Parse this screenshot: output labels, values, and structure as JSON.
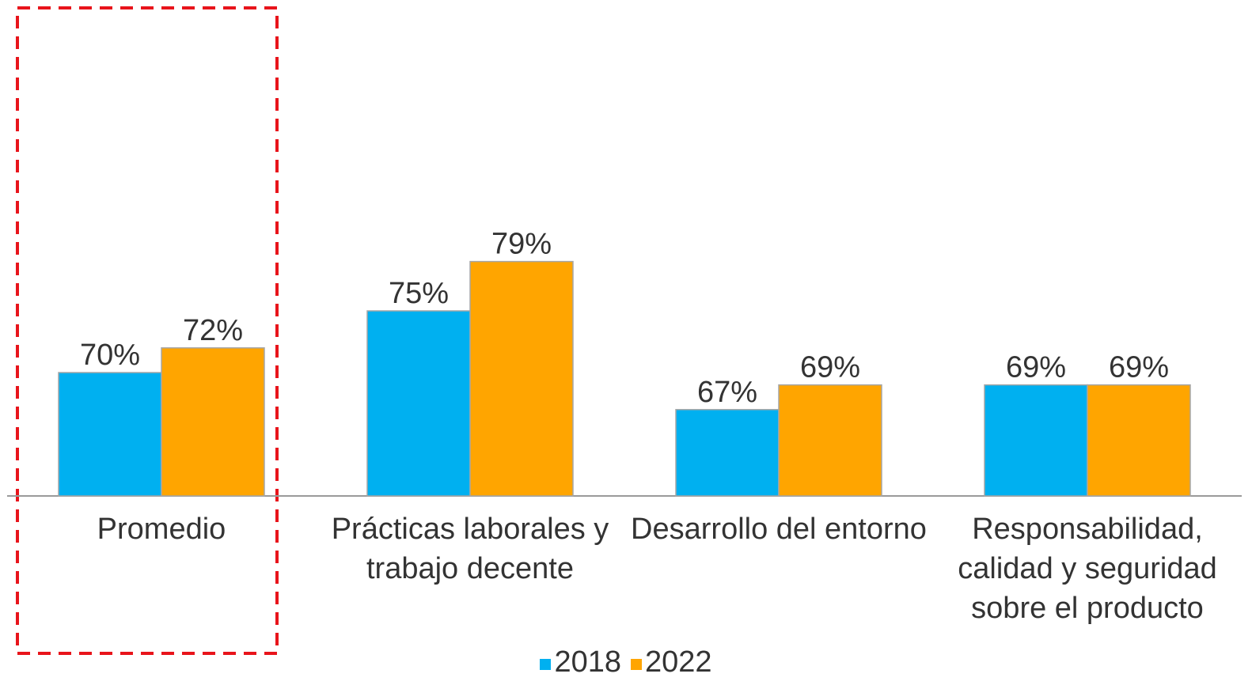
{
  "chart_data": {
    "type": "bar",
    "categories": [
      "Promedio",
      "Prácticas laborales y trabajo decente",
      "Desarrollo del entorno",
      "Responsabilidad, calidad y seguridad sobre el producto"
    ],
    "series": [
      {
        "name": "2018",
        "color": "#00B0F0",
        "values": [
          70,
          75,
          67,
          69
        ],
        "value_labels": [
          "70%",
          "75%",
          "67%",
          "69%"
        ]
      },
      {
        "name": "2022",
        "color": "#FFA500",
        "values": [
          72,
          79,
          69,
          69
        ],
        "value_labels": [
          "72%",
          "79%",
          "69%",
          "69%"
        ]
      }
    ],
    "ylim": [
      60,
      100
    ]
  }
}
